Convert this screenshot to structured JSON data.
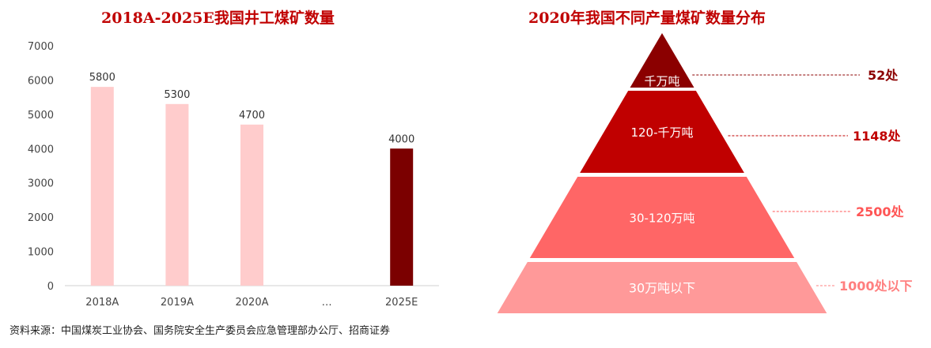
{
  "chart_data": [
    {
      "type": "bar",
      "title": "2018A-2025E我国井工煤矿数量",
      "categories": [
        "2018A",
        "2019A",
        "2020A",
        "…",
        "2025E"
      ],
      "values": [
        5800,
        5300,
        4700,
        null,
        4000
      ],
      "data_labels": [
        "5800",
        "5300",
        "4700",
        "",
        "4000"
      ],
      "ylim": [
        0,
        7000
      ],
      "yticks": [
        "0",
        "1000",
        "2000",
        "3000",
        "4000",
        "5000",
        "6000",
        "7000"
      ],
      "colors": [
        "#ffcccc",
        "#ffcccc",
        "#ffcccc",
        "#ffcccc",
        "#7b0000"
      ],
      "grid": false,
      "xlabel": "",
      "ylabel": ""
    },
    {
      "type": "pyramid",
      "title": "2020年我国不同产量煤矿数量分布",
      "levels": [
        {
          "name": "千万吨",
          "count": 52,
          "label": "52处",
          "color": "#8b0000"
        },
        {
          "name": "120-千万吨",
          "count": 1148,
          "label": "1148处",
          "color": "#c00000"
        },
        {
          "name": "30-120万吨",
          "count": 2500,
          "label": "2500处",
          "color": "#ff6666"
        },
        {
          "name": "30万吨以下",
          "count": 1000,
          "label": "1000处以下",
          "color": "#ff9999"
        }
      ],
      "callout_colors": [
        "#8b0000",
        "#c00000",
        "#ff5555",
        "#ff7f7f"
      ]
    }
  ],
  "source": "资料来源：中国煤炭工业协会、国务院安全生产委员会应急管理部办公厅、招商证券"
}
